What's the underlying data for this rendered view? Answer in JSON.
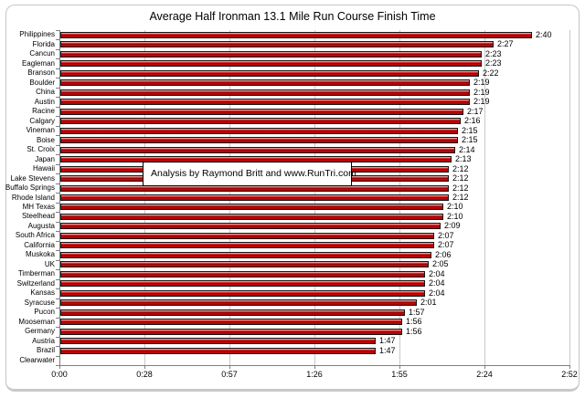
{
  "chart_data": {
    "type": "bar",
    "orientation": "horizontal",
    "title": "Average Half Ironman 13.1 Mile Run Course Finish Time",
    "xlabel": "",
    "ylabel": "",
    "grid": true,
    "legend": false,
    "annotation": "Analysis by Raymond Britt and www.RunTri.com",
    "categories": [
      "Philippines",
      "Florida",
      "Cancun",
      "Eagleman",
      "Branson",
      "Boulder",
      "China",
      "Austin",
      "Racine",
      "Calgary",
      "Vineman",
      "Boise",
      "St. Croix",
      "Japan",
      "Hawaii",
      "Lake Stevens",
      "Buffalo Springs",
      "Rhode Island",
      "MH Texas",
      "Steelhead",
      "Augusta",
      "South Africa",
      "California",
      "Muskoka",
      "UK",
      "Timberman",
      "Switzerland",
      "Kansas",
      "Syracuse",
      "Pucon",
      "Mooseman",
      "Germany",
      "Austria",
      "Brazil",
      "Clearwater"
    ],
    "values": [
      "2:40",
      "2:27",
      "2:23",
      "2:23",
      "2:22",
      "2:19",
      "2:19",
      "2:19",
      "2:17",
      "2:16",
      "2:15",
      "2:15",
      "2:14",
      "2:13",
      "2:12",
      "2:12",
      "2:12",
      "2:12",
      "2:10",
      "2:10",
      "2:09",
      "2:07",
      "2:07",
      "2:06",
      "2:05",
      "2:04",
      "2:04",
      "2:04",
      "2:01",
      "1:57",
      "1:56",
      "1:56",
      "1:47",
      "1:47",
      null
    ],
    "x_ticks": [
      "0:00",
      "0:28",
      "0:57",
      "1:26",
      "1:55",
      "2:24",
      "2:52"
    ],
    "x_max_minutes": 172.8,
    "colors": {
      "bar_fill": "#C00000",
      "bar_border": "#000000",
      "gridline": "#C9C9C9",
      "axis": "#7F7F7F",
      "text": "#000000",
      "frame_border": "#C5C5C5",
      "background": "#FFFFFF"
    }
  }
}
